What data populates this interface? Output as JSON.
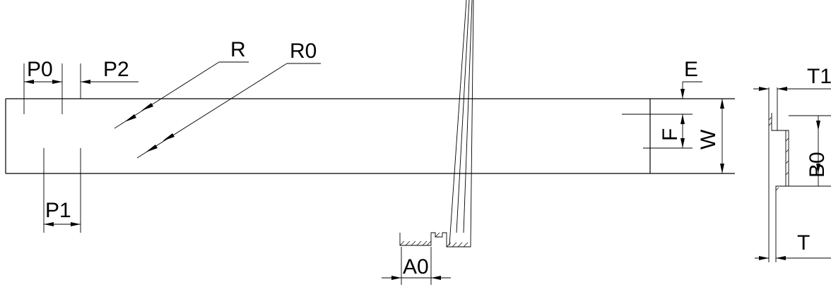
{
  "labels": {
    "p0": "P0",
    "p2": "P2",
    "p1": "P1",
    "r": "R",
    "r0": "R0",
    "e": "E",
    "f": "F",
    "w": "W",
    "a0": "A0",
    "t1": "T1",
    "b0": "B0",
    "t": "T"
  }
}
